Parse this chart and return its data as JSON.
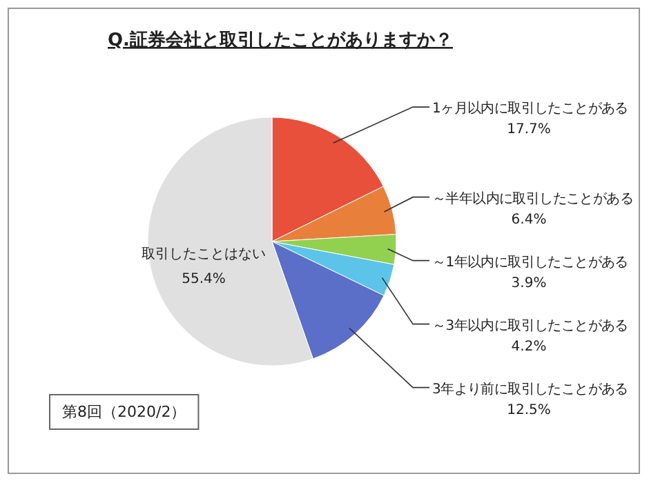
{
  "chart_data": {
    "type": "pie",
    "title": "Q.証券会社と取引したことがありますか？",
    "categories": [
      "1ヶ月以内に取引したことがある",
      "～半年以内に取引したことがある",
      "～1年以内に取引したことがある",
      "～3年以内に取引したことがある",
      "3年より前に取引したことがある",
      "取引したことはない"
    ],
    "values": [
      17.7,
      6.4,
      3.9,
      4.2,
      12.5,
      55.4
    ],
    "value_labels": [
      "17.7%",
      "6.4%",
      "3.9%",
      "4.2%",
      "12.5%",
      "55.4%"
    ],
    "colors": [
      "#e8503c",
      "#e8803c",
      "#92d050",
      "#5bc4e8",
      "#5b6fc8",
      "#e0e0e0"
    ],
    "annotations": [
      "第8回（2020/2）"
    ]
  }
}
